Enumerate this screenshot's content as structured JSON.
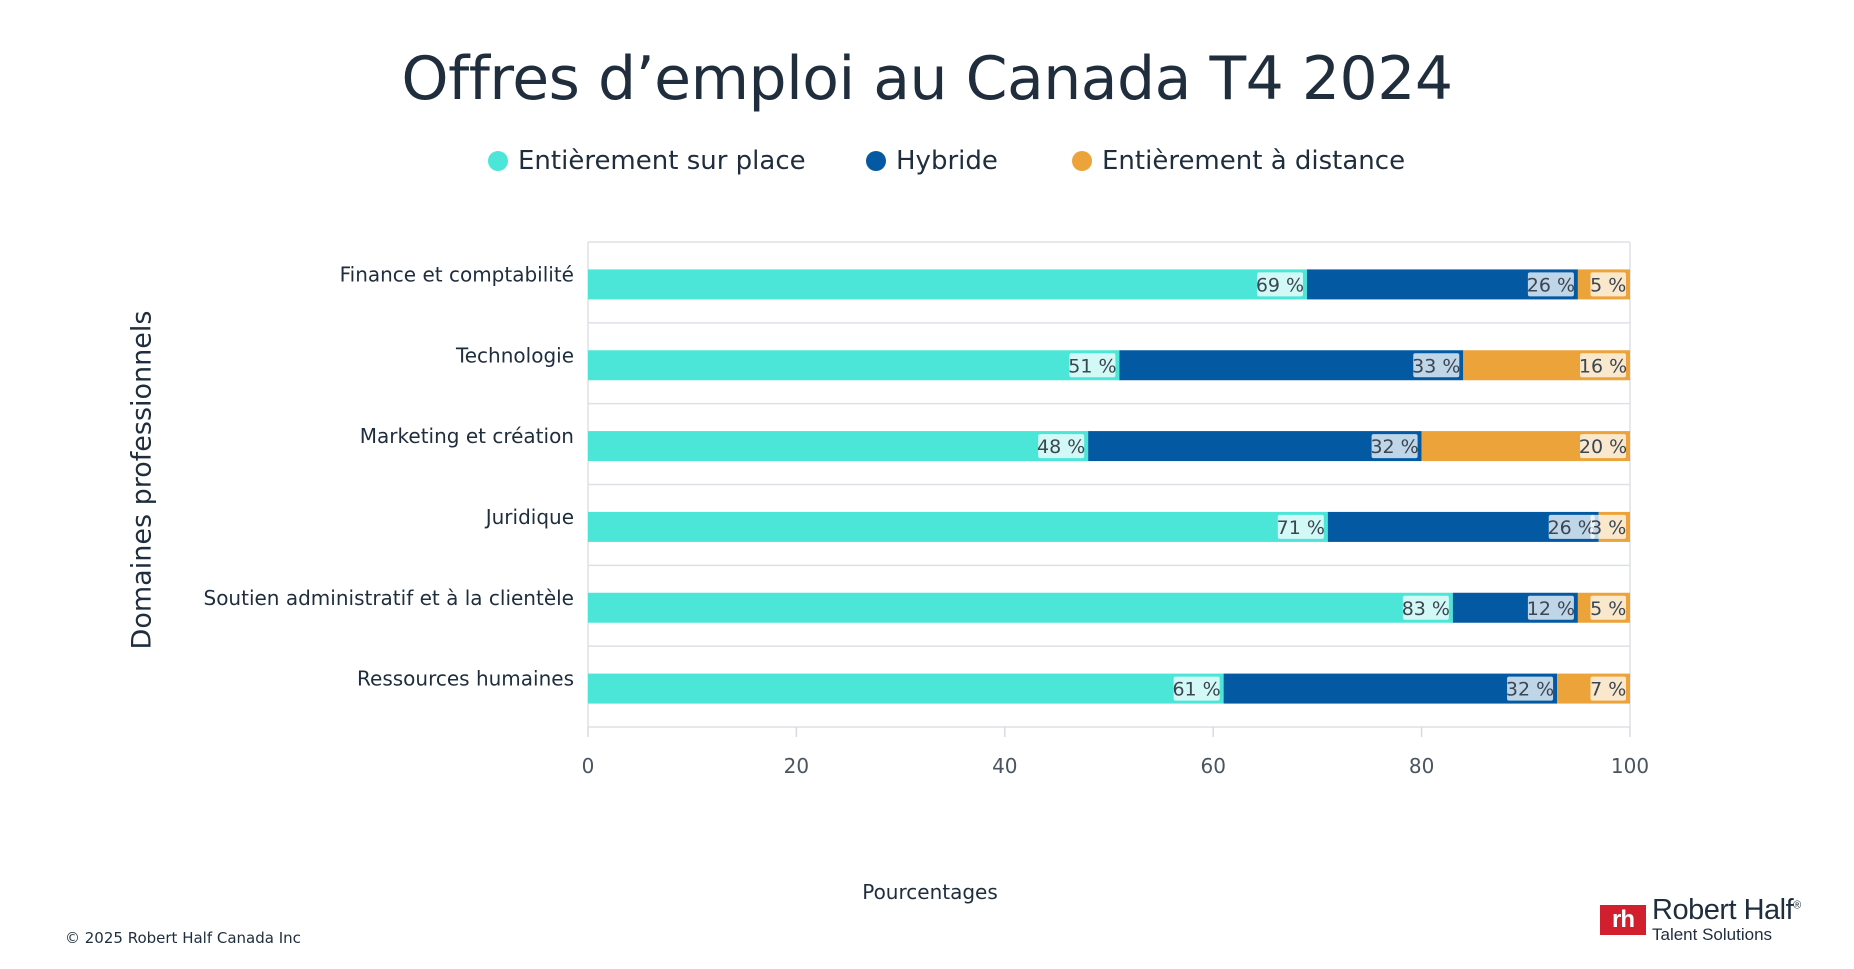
{
  "title": "Offres d’emploi au Canada T4 2024",
  "legend": [
    {
      "label": "Entièrement sur place",
      "color": "#4ce6d8"
    },
    {
      "label": "Hybride",
      "color": "#035aa3"
    },
    {
      "label": "Entièrement  à distance",
      "color": "#eca33a"
    }
  ],
  "copyright": "© 2025 Robert Half Canada Inc",
  "logo": {
    "mark": "rh",
    "name": "Robert Half",
    "registered": "®",
    "subtitle": "Talent Solutions"
  },
  "chart_data": {
    "type": "bar",
    "orientation": "horizontal",
    "stacked": true,
    "title": "Offres d’emploi au Canada T4 2024",
    "xlabel": "Pourcentages",
    "ylabel": "Domaines professionnels",
    "xlim": [
      0,
      100
    ],
    "xticks": [
      "0",
      "20",
      "40",
      "60",
      "80",
      "100"
    ],
    "categories": [
      "Finance et comptabilité",
      "Technologie",
      "Marketing et création",
      "Juridique",
      "Soutien administratif et à la clientèle",
      "Ressources humaines"
    ],
    "series": [
      {
        "name": "Entièrement sur place",
        "color": "#4ce6d8",
        "values": [
          69,
          51,
          48,
          71,
          83,
          61
        ],
        "labels": [
          "69 %",
          "51 %",
          "48 %",
          "71 %",
          "83 %",
          "61 %"
        ]
      },
      {
        "name": "Hybride",
        "color": "#035aa3",
        "values": [
          26,
          33,
          32,
          26,
          12,
          32
        ],
        "labels": [
          "26 %",
          "33 %",
          "32 %",
          "26 %",
          "12 %",
          "32 %"
        ]
      },
      {
        "name": "Entièrement  à distance",
        "color": "#eca33a",
        "values": [
          5,
          16,
          20,
          3,
          5,
          7
        ],
        "labels": [
          "5 %",
          "16 %",
          "20 %",
          "3 %",
          "5 %",
          "7 %"
        ]
      }
    ]
  }
}
